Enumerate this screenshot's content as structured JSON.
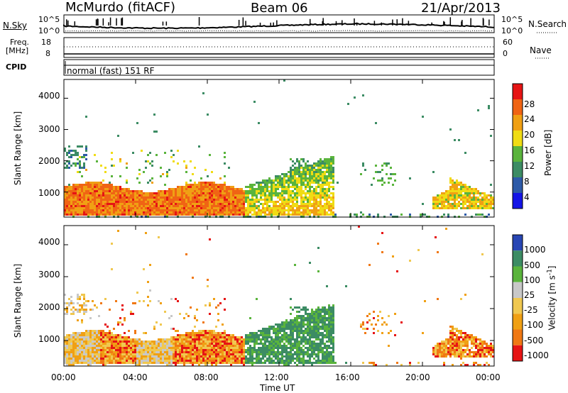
{
  "header": {
    "station": "McMurdo (fitACF)",
    "beam": "Beam 06",
    "date": "21/Apr/2013"
  },
  "strip_labels": {
    "nsky": "N.Sky",
    "nsky_top": "10^5",
    "nsky_bottom": "10^0",
    "nsearch": "N.Search",
    "nsearch_top": "10^5",
    "nsearch_bottom": "10^0",
    "freq": "Freq.",
    "freq_unit": "[MHz]",
    "freq_top": "18",
    "freq_bottom": "8",
    "nave": "Nave",
    "nave_top": "60",
    "nave_bottom": "0",
    "cpid": "CPID",
    "cpid_value": "normal (fast) 151 RF"
  },
  "chart_data": [
    {
      "type": "heatmap",
      "name": "power",
      "ylabel": "Slant Range [km]",
      "ylim": [
        200,
        4600
      ],
      "yticks": [
        "1000",
        "2000",
        "3000",
        "4000"
      ],
      "colorbar_label": "Power [dB]",
      "colorbar_ticks": [
        "4",
        "8",
        "12",
        "16",
        "20",
        "24",
        "28"
      ],
      "colors": [
        "#1414e6",
        "#2d5aa8",
        "#3c8c64",
        "#5ab43c",
        "#f0dc14",
        "#f0a014",
        "#f06414",
        "#e61414"
      ]
    },
    {
      "type": "heatmap",
      "name": "velocity",
      "ylabel": "Slant Range [km]",
      "ylim": [
        200,
        4600
      ],
      "yticks": [
        "1000",
        "2000",
        "3000",
        "4000"
      ],
      "colorbar_label": "Velocity [m s",
      "colorbar_label_sup": "-1",
      "colorbar_label_end": "]",
      "colorbar_ticks": [
        "1000",
        "500",
        "100",
        "25",
        "-25",
        "-100",
        "-500",
        "-1000"
      ],
      "colors": [
        "#2846b4",
        "#3c8c64",
        "#5ab43c",
        "#c8c8c8",
        "#f0c850",
        "#f0a014",
        "#f07814",
        "#e61414"
      ],
      "xlabel": "Time UT",
      "xticks": [
        "00:00",
        "04:00",
        "08:00",
        "12:00",
        "16:00",
        "20:00",
        "00:00"
      ]
    }
  ]
}
